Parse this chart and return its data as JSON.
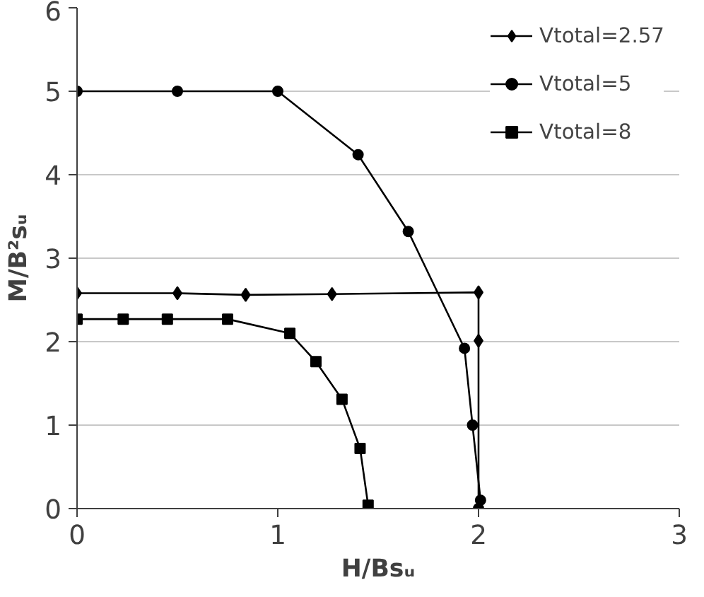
{
  "chart_data": {
    "type": "line",
    "xlabel": "H/Bsᵤ",
    "ylabel": "M/B²sᵤ",
    "xlim": [
      0,
      3
    ],
    "ylim": [
      0,
      6
    ],
    "xticks": [
      0,
      1,
      2,
      3
    ],
    "yticks": [
      0,
      1,
      2,
      3,
      4,
      5,
      6
    ],
    "grid": "y",
    "legend": "top right",
    "line_style": "solid",
    "series": [
      {
        "name": "Vtotal=2.57",
        "color": "#000000",
        "marker": "diamond",
        "x": [
          0,
          0.5,
          0.84,
          1.27,
          2.0,
          2.0,
          2.0
        ],
        "values": [
          2.58,
          2.58,
          2.56,
          2.57,
          2.59,
          2.01,
          0
        ]
      },
      {
        "name": "Vtotal=5",
        "color": "#000000",
        "marker": "circle",
        "x": [
          0,
          0.5,
          1.0,
          1.4,
          1.65,
          1.93,
          1.97,
          2.01,
          2.0
        ],
        "values": [
          5,
          5,
          5,
          4.24,
          3.32,
          1.92,
          1.0,
          0.1,
          0
        ]
      },
      {
        "name": "Vtotal=8",
        "color": "#000000",
        "marker": "square",
        "x": [
          0,
          0.23,
          0.45,
          0.75,
          1.06,
          1.19,
          1.32,
          1.41,
          1.45
        ],
        "values": [
          2.27,
          2.27,
          2.27,
          2.27,
          2.1,
          1.76,
          1.31,
          0.72,
          0.04
        ]
      }
    ]
  }
}
